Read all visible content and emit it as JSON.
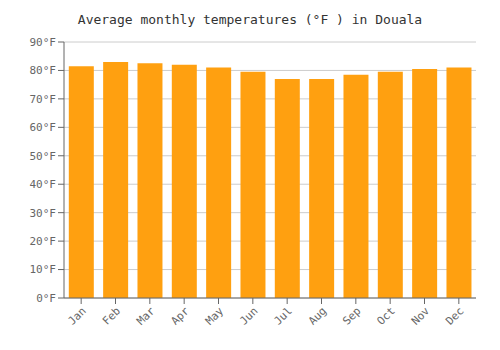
{
  "chart_data": {
    "type": "bar",
    "title": "Average monthly temperatures (°F ) in Douala",
    "categories": [
      "Jan",
      "Feb",
      "Mar",
      "Apr",
      "May",
      "Jun",
      "Jul",
      "Aug",
      "Sep",
      "Oct",
      "Nov",
      "Dec"
    ],
    "values": [
      81.5,
      83.0,
      82.5,
      82.0,
      81.0,
      79.5,
      77.0,
      77.0,
      78.5,
      79.5,
      80.5,
      81.0
    ],
    "color": "#FFA010",
    "ylim": [
      0,
      90
    ],
    "yticks": [
      {
        "value": 0,
        "label": "0°F"
      },
      {
        "value": 10,
        "label": "10°F"
      },
      {
        "value": 20,
        "label": "20°F"
      },
      {
        "value": 30,
        "label": "30°F"
      },
      {
        "value": 40,
        "label": "40°F"
      },
      {
        "value": 50,
        "label": "50°F"
      },
      {
        "value": 60,
        "label": "60°F"
      },
      {
        "value": 70,
        "label": "70°F"
      },
      {
        "value": 80,
        "label": "80°F"
      },
      {
        "value": 90,
        "label": "90°F"
      }
    ],
    "grid": true
  }
}
